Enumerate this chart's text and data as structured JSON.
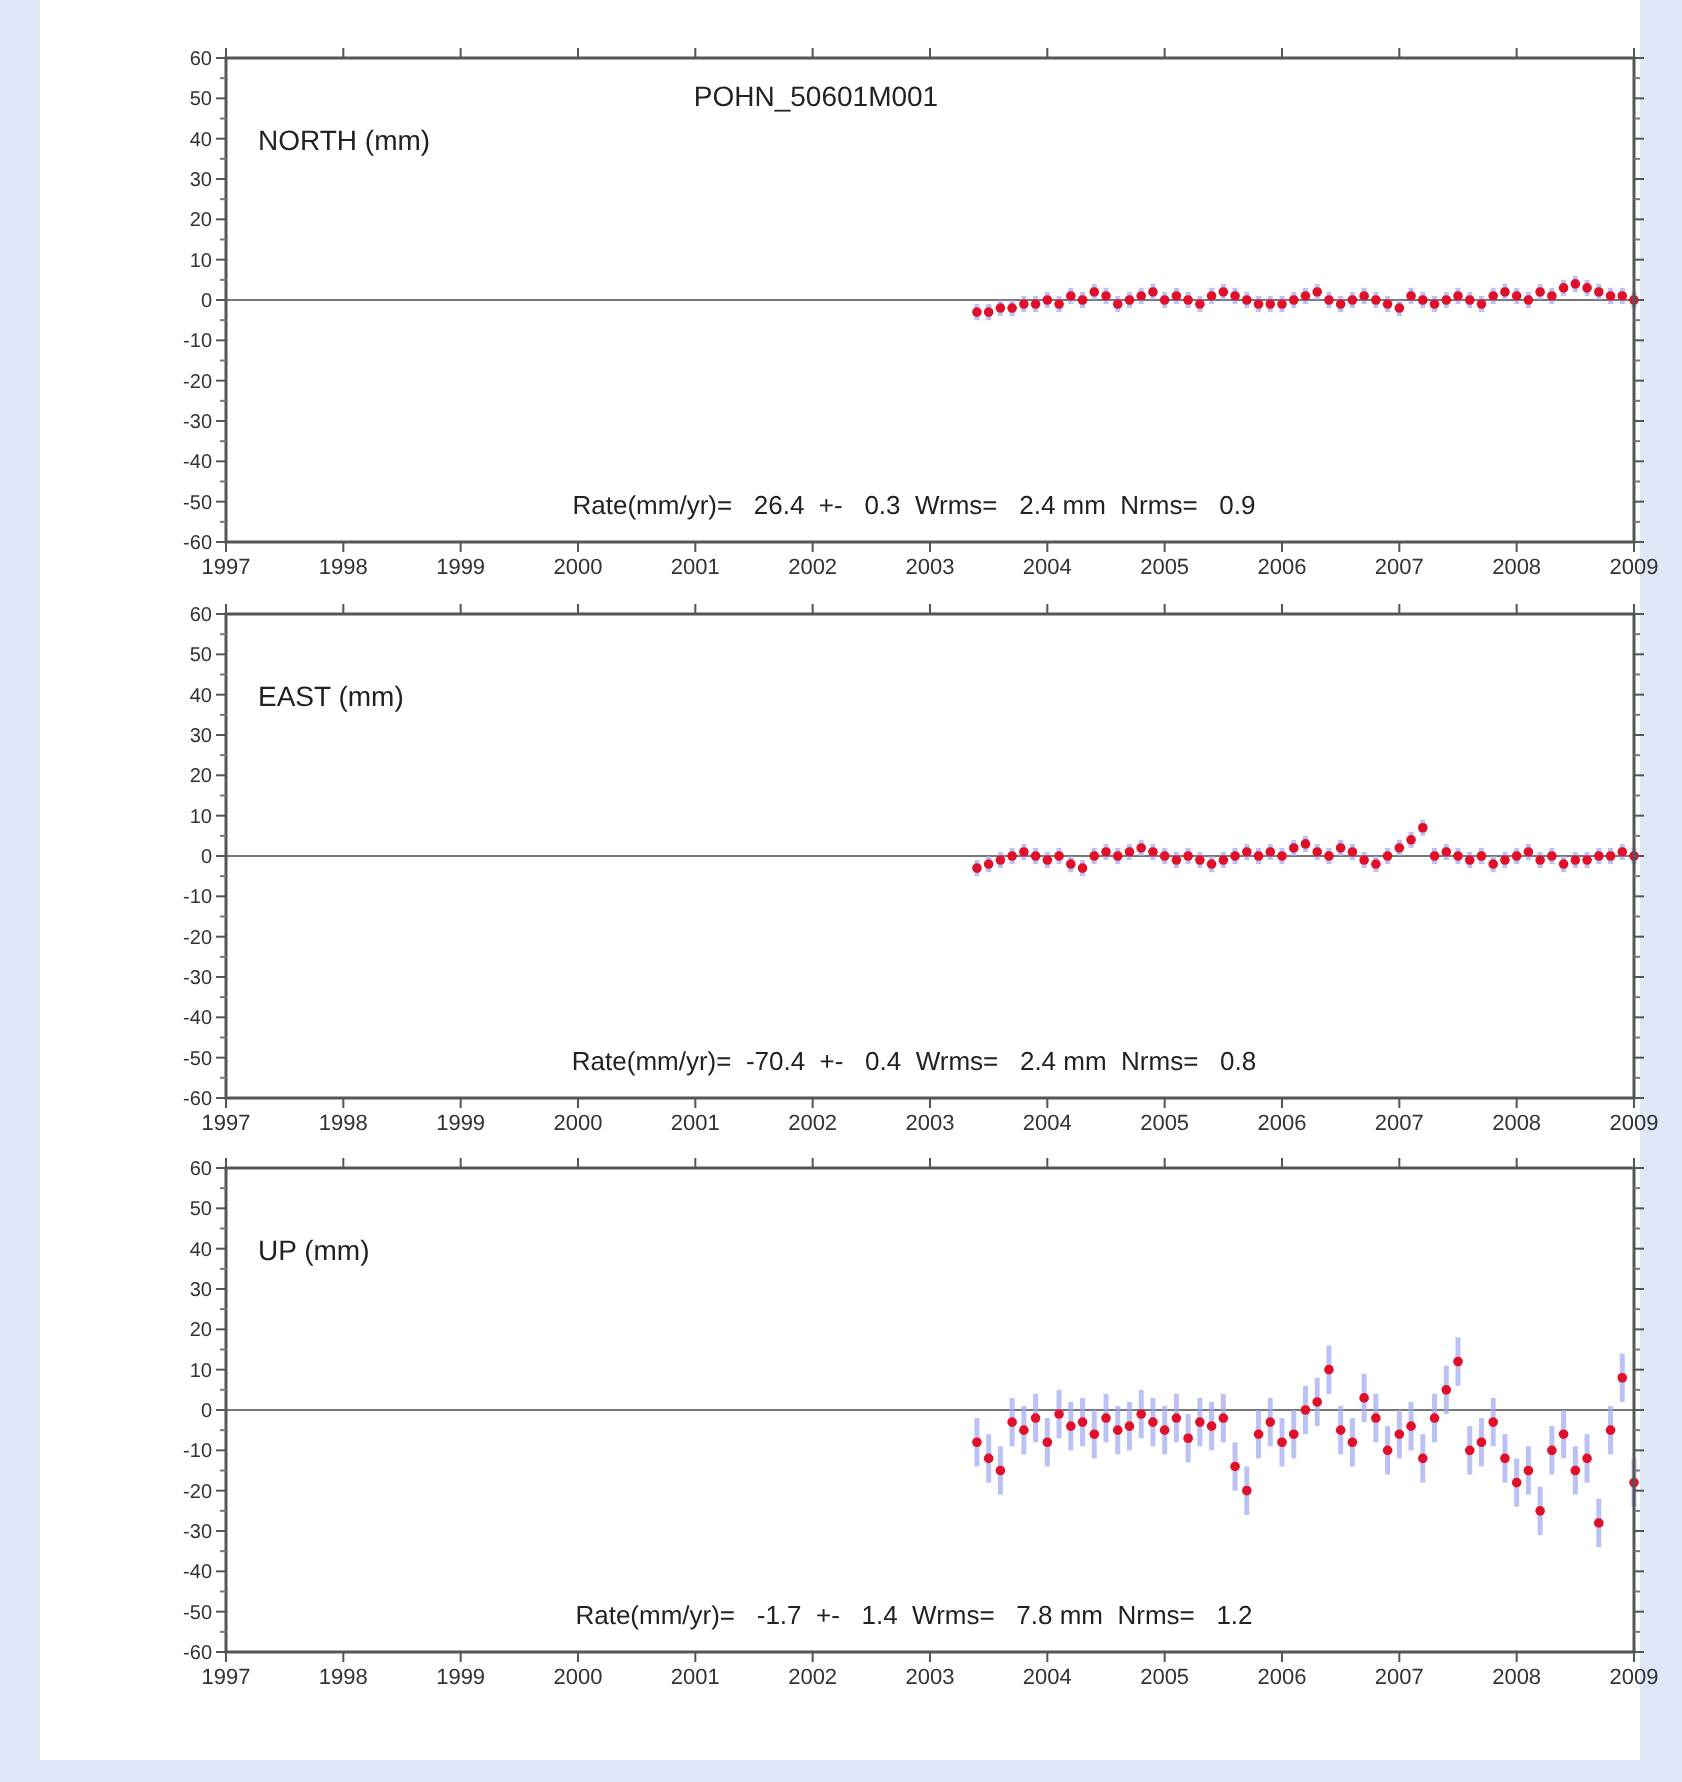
{
  "chart_data": [
    {
      "type": "scatter",
      "title": "POHN_50601M001",
      "ylabel": "NORTH (mm)",
      "marker": "circle",
      "grid": false,
      "x": [
        2003.4,
        2003.5,
        2003.6,
        2003.7,
        2003.8,
        2003.9,
        2004.0,
        2004.1,
        2004.2,
        2004.3,
        2004.4,
        2004.5,
        2004.6,
        2004.7,
        2004.8,
        2004.9,
        2005.0,
        2005.1,
        2005.2,
        2005.3,
        2005.4,
        2005.5,
        2005.6,
        2005.7,
        2005.8,
        2005.9,
        2006.0,
        2006.1,
        2006.2,
        2006.3,
        2006.4,
        2006.5,
        2006.6,
        2006.7,
        2006.8,
        2006.9,
        2007.0,
        2007.1,
        2007.2,
        2007.3,
        2007.4,
        2007.5,
        2007.6,
        2007.7,
        2007.8,
        2007.9,
        2008.0,
        2008.1,
        2008.2,
        2008.3,
        2008.4,
        2008.5,
        2008.6,
        2008.7,
        2008.8,
        2008.9,
        2009.0
      ],
      "series": [
        {
          "color": "#e0102a",
          "values": [
            -3,
            -3,
            -2,
            -2,
            -1,
            -1,
            0,
            -1,
            1,
            0,
            2,
            1,
            -1,
            0,
            1,
            2,
            0,
            1,
            0,
            -1,
            1,
            2,
            1,
            0,
            -1,
            -1,
            -1,
            0,
            1,
            2,
            0,
            -1,
            0,
            1,
            0,
            -1,
            -2,
            1,
            0,
            -1,
            0,
            1,
            0,
            -1,
            1,
            2,
            1,
            0,
            2,
            1,
            3,
            4,
            3,
            2,
            1,
            1,
            0
          ],
          "errors": [
            2,
            2,
            2,
            2,
            2,
            2,
            2,
            2,
            2,
            2,
            2,
            2,
            2,
            2,
            2,
            2,
            2,
            2,
            2,
            2,
            2,
            2,
            2,
            2,
            2,
            2,
            2,
            2,
            2,
            2,
            2,
            2,
            2,
            2,
            2,
            2,
            2,
            2,
            2,
            2,
            2,
            2,
            2,
            2,
            2,
            2,
            2,
            2,
            2,
            2,
            2,
            2,
            2,
            2,
            2,
            2,
            2
          ]
        }
      ],
      "xlim": [
        1997,
        2009
      ],
      "xticks": [
        1997,
        1998,
        1999,
        2000,
        2001,
        2002,
        2003,
        2004,
        2005,
        2006,
        2007,
        2008,
        2009
      ],
      "ylim": [
        -60,
        60
      ],
      "yticks": [
        -60,
        -50,
        -40,
        -30,
        -20,
        -10,
        0,
        10,
        20,
        30,
        40,
        50,
        60
      ],
      "ref_lines": [
        {
          "axis": "y",
          "value": 0
        }
      ],
      "annotations": [
        "Rate(mm/yr)=   26.4  +-   0.3  Wrms=   2.4 mm  Nrms=   0.9"
      ]
    },
    {
      "type": "scatter",
      "ylabel": "EAST (mm)",
      "marker": "circle",
      "grid": false,
      "x": [
        2003.4,
        2003.5,
        2003.6,
        2003.7,
        2003.8,
        2003.9,
        2004.0,
        2004.1,
        2004.2,
        2004.3,
        2004.4,
        2004.5,
        2004.6,
        2004.7,
        2004.8,
        2004.9,
        2005.0,
        2005.1,
        2005.2,
        2005.3,
        2005.4,
        2005.5,
        2005.6,
        2005.7,
        2005.8,
        2005.9,
        2006.0,
        2006.1,
        2006.2,
        2006.3,
        2006.4,
        2006.5,
        2006.6,
        2006.7,
        2006.8,
        2006.9,
        2007.0,
        2007.1,
        2007.2,
        2007.3,
        2007.4,
        2007.5,
        2007.6,
        2007.7,
        2007.8,
        2007.9,
        2008.0,
        2008.1,
        2008.2,
        2008.3,
        2008.4,
        2008.5,
        2008.6,
        2008.7,
        2008.8,
        2008.9,
        2009.0
      ],
      "series": [
        {
          "color": "#e0102a",
          "values": [
            -3,
            -2,
            -1,
            0,
            1,
            0,
            -1,
            0,
            -2,
            -3,
            0,
            1,
            0,
            1,
            2,
            1,
            0,
            -1,
            0,
            -1,
            -2,
            -1,
            0,
            1,
            0,
            1,
            0,
            2,
            3,
            1,
            0,
            2,
            1,
            -1,
            -2,
            0,
            2,
            4,
            7,
            0,
            1,
            0,
            -1,
            0,
            -2,
            -1,
            0,
            1,
            -1,
            0,
            -2,
            -1,
            -1,
            0,
            0,
            1,
            0
          ],
          "errors": [
            2,
            2,
            2,
            2,
            2,
            2,
            2,
            2,
            2,
            2,
            2,
            2,
            2,
            2,
            2,
            2,
            2,
            2,
            2,
            2,
            2,
            2,
            2,
            2,
            2,
            2,
            2,
            2,
            2,
            2,
            2,
            2,
            2,
            2,
            2,
            2,
            2,
            2,
            2,
            2,
            2,
            2,
            2,
            2,
            2,
            2,
            2,
            2,
            2,
            2,
            2,
            2,
            2,
            2,
            2,
            2,
            2
          ]
        }
      ],
      "xlim": [
        1997,
        2009
      ],
      "xticks": [
        1997,
        1998,
        1999,
        2000,
        2001,
        2002,
        2003,
        2004,
        2005,
        2006,
        2007,
        2008,
        2009
      ],
      "ylim": [
        -60,
        60
      ],
      "yticks": [
        -60,
        -50,
        -40,
        -30,
        -20,
        -10,
        0,
        10,
        20,
        30,
        40,
        50,
        60
      ],
      "ref_lines": [
        {
          "axis": "y",
          "value": 0
        }
      ],
      "annotations": [
        "Rate(mm/yr)=  -70.4  +-   0.4  Wrms=   2.4 mm  Nrms=   0.8"
      ]
    },
    {
      "type": "scatter",
      "ylabel": "UP (mm)",
      "marker": "circle",
      "grid": false,
      "x": [
        2003.4,
        2003.5,
        2003.6,
        2003.7,
        2003.8,
        2003.9,
        2004.0,
        2004.1,
        2004.2,
        2004.3,
        2004.4,
        2004.5,
        2004.6,
        2004.7,
        2004.8,
        2004.9,
        2005.0,
        2005.1,
        2005.2,
        2005.3,
        2005.4,
        2005.5,
        2005.6,
        2005.7,
        2005.8,
        2005.9,
        2006.0,
        2006.1,
        2006.2,
        2006.3,
        2006.4,
        2006.5,
        2006.6,
        2006.7,
        2006.8,
        2006.9,
        2007.0,
        2007.1,
        2007.2,
        2007.3,
        2007.4,
        2007.5,
        2007.6,
        2007.7,
        2007.8,
        2007.9,
        2008.0,
        2008.1,
        2008.2,
        2008.3,
        2008.4,
        2008.5,
        2008.6,
        2008.7,
        2008.8,
        2008.9,
        2009.0
      ],
      "series": [
        {
          "color": "#e0102a",
          "values": [
            -8,
            -12,
            -15,
            -3,
            -5,
            -2,
            -8,
            -1,
            -4,
            -3,
            -6,
            -2,
            -5,
            -4,
            -1,
            -3,
            -5,
            -2,
            -7,
            -3,
            -4,
            -2,
            -14,
            -20,
            -6,
            -3,
            -8,
            -6,
            0,
            2,
            10,
            -5,
            -8,
            3,
            -2,
            -10,
            -6,
            -4,
            -12,
            -2,
            5,
            12,
            -10,
            -8,
            -3,
            -12,
            -18,
            -15,
            -25,
            -10,
            -6,
            -15,
            -12,
            -28,
            -5,
            8,
            -18
          ],
          "errors": [
            6,
            6,
            6,
            6,
            6,
            6,
            6,
            6,
            6,
            6,
            6,
            6,
            6,
            6,
            6,
            6,
            6,
            6,
            6,
            6,
            6,
            6,
            6,
            6,
            6,
            6,
            6,
            6,
            6,
            6,
            6,
            6,
            6,
            6,
            6,
            6,
            6,
            6,
            6,
            6,
            6,
            6,
            6,
            6,
            6,
            6,
            6,
            6,
            6,
            6,
            6,
            6,
            6,
            6,
            6,
            6,
            6
          ]
        }
      ],
      "xlim": [
        1997,
        2009
      ],
      "xticks": [
        1997,
        1998,
        1999,
        2000,
        2001,
        2002,
        2003,
        2004,
        2005,
        2006,
        2007,
        2008,
        2009
      ],
      "ylim": [
        -60,
        60
      ],
      "yticks": [
        -60,
        -50,
        -40,
        -30,
        -20,
        -10,
        0,
        10,
        20,
        30,
        40,
        50,
        60
      ],
      "ref_lines": [
        {
          "axis": "y",
          "value": 0
        }
      ],
      "annotations": [
        "Rate(mm/yr)=   -1.7  +-   1.4  Wrms=   7.8 mm  Nrms=   1.2"
      ]
    }
  ]
}
